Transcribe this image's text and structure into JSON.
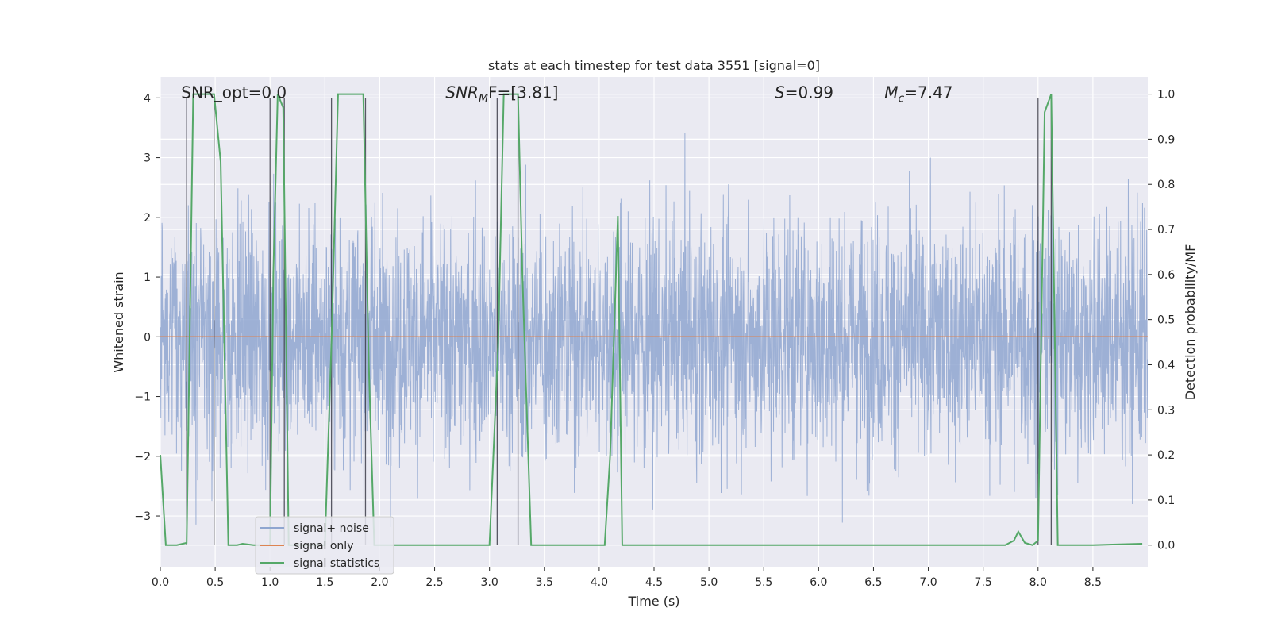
{
  "chart_data": {
    "type": "line",
    "title": "stats at each timestep for test data 3551 [signal=0]",
    "xlabel": "Time (s)",
    "ylabel_left": "Whitened strain",
    "ylabel_right": "Detection probability/MF",
    "xlim": [
      0.0,
      9.0
    ],
    "ylim_left": [
      -3.85,
      4.35
    ],
    "ylim_right": [
      -0.048,
      1.038
    ],
    "xticks": [
      0.0,
      0.5,
      1.0,
      1.5,
      2.0,
      2.5,
      3.0,
      3.5,
      4.0,
      4.5,
      5.0,
      5.5,
      6.0,
      6.5,
      7.0,
      7.5,
      8.0,
      8.5
    ],
    "xtick_labels": [
      "0.0",
      "0.5",
      "1.0",
      "1.5",
      "2.0",
      "2.5",
      "3.0",
      "3.5",
      "4.0",
      "4.5",
      "5.0",
      "5.5",
      "6.0",
      "6.5",
      "7.0",
      "7.5",
      "8.0",
      "8.5"
    ],
    "yticks_left": [
      -3,
      -2,
      -1,
      0,
      1,
      2,
      3,
      4
    ],
    "ytick_labels_left": [
      "−3",
      "−2",
      "−1",
      "0",
      "1",
      "2",
      "3",
      "4"
    ],
    "yticks_right": [
      0.0,
      0.1,
      0.2,
      0.3,
      0.4,
      0.5,
      0.6,
      0.7,
      0.8,
      0.9,
      1.0
    ],
    "ytick_labels_right": [
      "0.0",
      "0.1",
      "0.2",
      "0.3",
      "0.4",
      "0.5",
      "0.6",
      "0.7",
      "0.8",
      "0.9",
      "1.0"
    ],
    "annotations": [
      {
        "id": "snr-opt",
        "text": "SNR_opt=0.0",
        "x": 0.19,
        "y": 4.05
      },
      {
        "id": "snr-mf",
        "prefix": "SNR",
        "sub": "M",
        "suffix": "F=[3.81]",
        "x": 2.6,
        "y": 4.05
      },
      {
        "id": "s-stat",
        "prefix": "S",
        "suffix": "=0.99",
        "x": 5.6,
        "y": 4.05
      },
      {
        "id": "mc-stat",
        "prefix": "M",
        "sub": "c",
        "suffix": "=7.47",
        "x": 6.6,
        "y": 4.05
      }
    ],
    "vertical_lines": [
      0.24,
      0.49,
      1.0,
      1.13,
      1.56,
      1.87,
      3.07,
      3.26,
      8.0,
      8.12
    ],
    "series": [
      {
        "name": "signal+ noise",
        "color": "#8fa6d0",
        "description": "whitened strain noise, approx ±2 with spikes to ±3.5",
        "n_points": 3600,
        "amplitude": 1.0,
        "seed": 3551
      },
      {
        "name": "signal only",
        "color": "#dd8452",
        "x": [
          0.0,
          9.0
        ],
        "y": [
          0.0,
          0.0
        ]
      },
      {
        "name": "signal statistics",
        "color": "#55a868",
        "axis": "right",
        "x": [
          0.0,
          0.05,
          0.15,
          0.24,
          0.3,
          0.36,
          0.44,
          0.49,
          0.55,
          0.62,
          0.7,
          0.75,
          0.85,
          1.0,
          1.03,
          1.07,
          1.12,
          1.17,
          1.23,
          1.3,
          1.5,
          1.56,
          1.62,
          1.7,
          1.85,
          1.9,
          1.95,
          2.0,
          2.5,
          3.0,
          3.08,
          3.13,
          3.26,
          3.3,
          3.38,
          3.5,
          4.05,
          4.1,
          4.17,
          4.21,
          4.25,
          4.5,
          5.0,
          6.0,
          7.0,
          7.7,
          7.78,
          7.82,
          7.88,
          7.95,
          8.0,
          8.06,
          8.12,
          8.18,
          8.3,
          8.5,
          8.95
        ],
        "y": [
          0.2,
          0.0,
          0.0,
          0.005,
          1.0,
          1.0,
          1.0,
          1.0,
          0.85,
          0.0,
          0.0,
          0.003,
          0.0,
          0.0,
          0.6,
          1.0,
          0.97,
          0.0,
          0.0,
          0.0,
          0.0,
          0.45,
          1.0,
          1.0,
          1.0,
          0.4,
          0.0,
          0.0,
          0.0,
          0.0,
          0.45,
          1.0,
          1.0,
          0.6,
          0.0,
          0.0,
          0.0,
          0.2,
          0.73,
          0.0,
          0.0,
          0.0,
          0.0,
          0.0,
          0.0,
          0.0,
          0.01,
          0.03,
          0.005,
          0.0,
          0.01,
          0.96,
          1.0,
          0.0,
          0.0,
          0.0,
          0.003
        ]
      }
    ],
    "legend": {
      "position": "lower-left",
      "entries": [
        {
          "label": "signal+ noise",
          "color": "#8fa6d0"
        },
        {
          "label": "signal only",
          "color": "#dd8452"
        },
        {
          "label": "signal statistics",
          "color": "#55a868"
        }
      ]
    }
  }
}
